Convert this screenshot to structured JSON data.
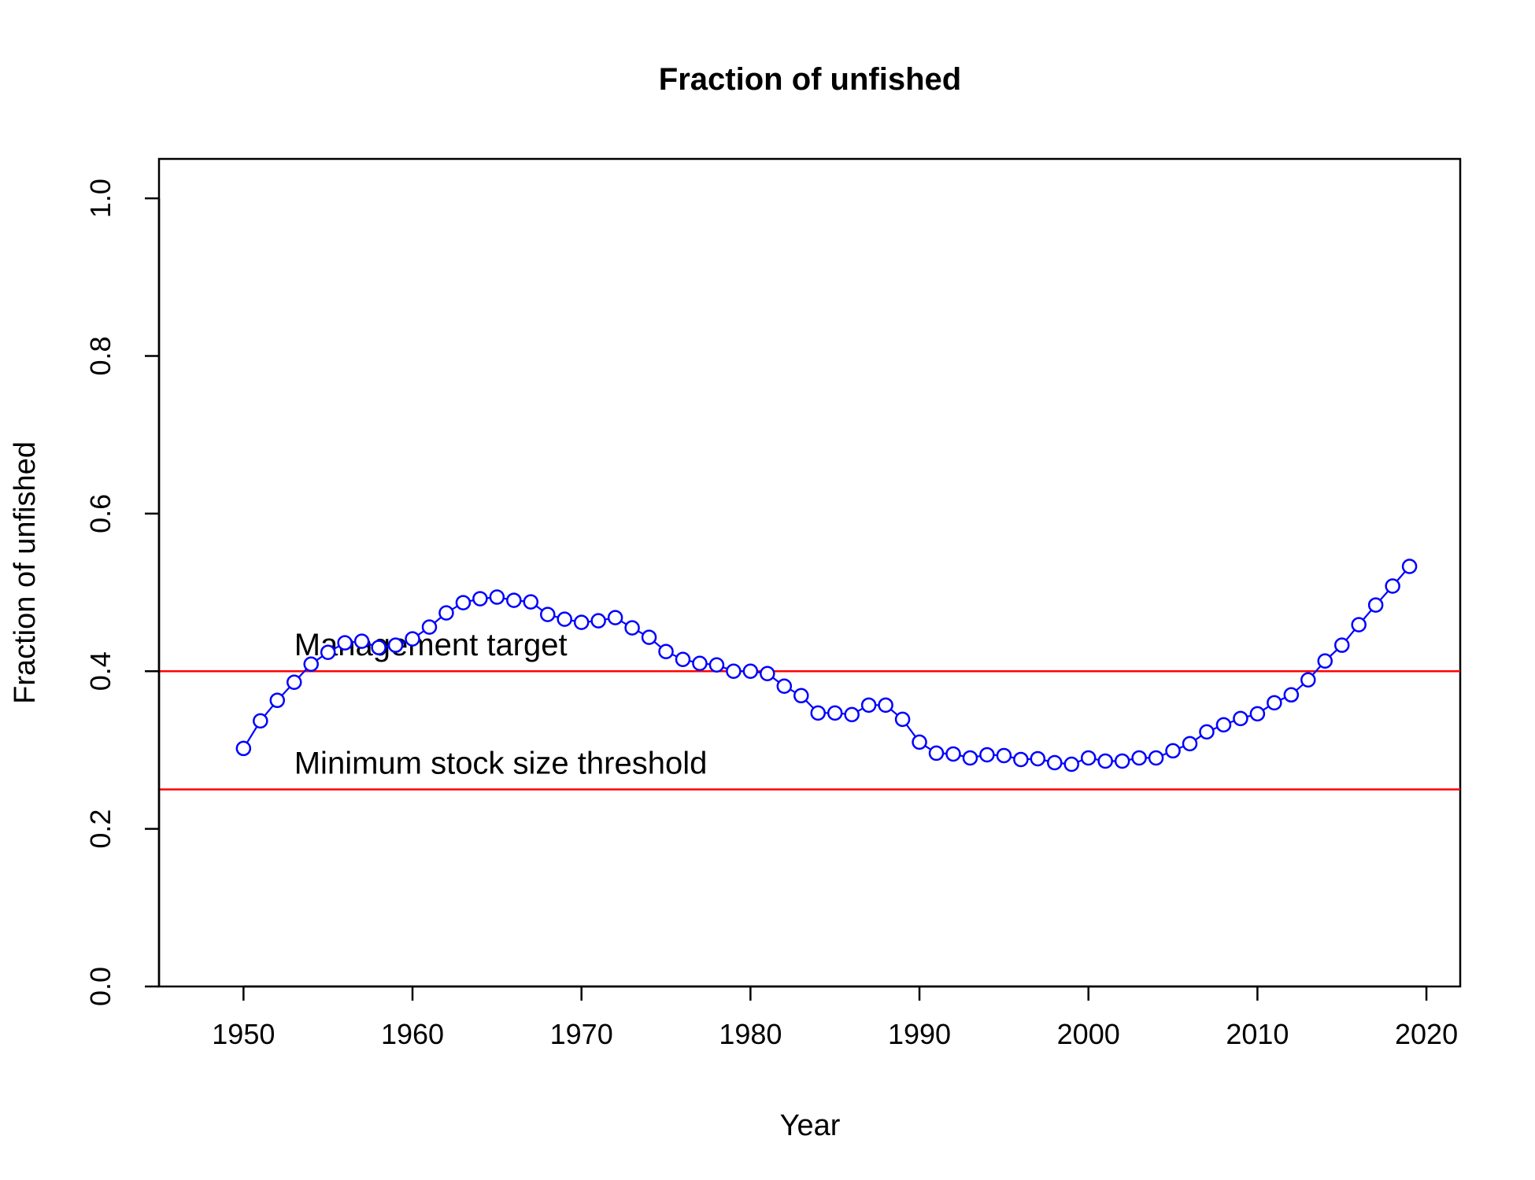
{
  "chart_data": {
    "type": "line",
    "title": "Fraction of unfished",
    "xlabel": "Year",
    "ylabel": "Fraction of unfished",
    "xlim": [
      1945,
      2022
    ],
    "ylim": [
      0.0,
      1.05
    ],
    "x_ticks": [
      1950,
      1960,
      1970,
      1980,
      1990,
      2000,
      2010,
      2020
    ],
    "x_tick_labels": [
      "1950",
      "1960",
      "1970",
      "1980",
      "1990",
      "2000",
      "2010",
      "2020"
    ],
    "y_ticks": [
      0.0,
      0.2,
      0.4,
      0.6,
      0.8,
      1.0
    ],
    "y_tick_labels": [
      "0.0",
      "0.2",
      "0.4",
      "0.6",
      "0.8",
      "1.0"
    ],
    "grid": false,
    "series": [
      {
        "color": "#0000ff",
        "marker": "open-circle",
        "x": [
          1950,
          1951,
          1952,
          1953,
          1954,
          1955,
          1956,
          1957,
          1958,
          1959,
          1960,
          1961,
          1962,
          1963,
          1964,
          1965,
          1966,
          1967,
          1968,
          1969,
          1970,
          1971,
          1972,
          1973,
          1974,
          1975,
          1976,
          1977,
          1978,
          1979,
          1980,
          1981,
          1982,
          1983,
          1984,
          1985,
          1986,
          1987,
          1988,
          1989,
          1990,
          1991,
          1992,
          1993,
          1994,
          1995,
          1996,
          1997,
          1998,
          1999,
          2000,
          2001,
          2002,
          2003,
          2004,
          2005,
          2006,
          2007,
          2008,
          2009,
          2010,
          2011,
          2012,
          2013,
          2014,
          2015,
          2016,
          2017,
          2018,
          2019
        ],
        "y": [
          0.302,
          0.337,
          0.363,
          0.386,
          0.409,
          0.424,
          0.436,
          0.438,
          0.43,
          0.433,
          0.441,
          0.456,
          0.474,
          0.487,
          0.492,
          0.494,
          0.49,
          0.488,
          0.472,
          0.466,
          0.462,
          0.464,
          0.468,
          0.455,
          0.443,
          0.425,
          0.415,
          0.41,
          0.408,
          0.4,
          0.4,
          0.397,
          0.381,
          0.369,
          0.347,
          0.347,
          0.345,
          0.357,
          0.357,
          0.339,
          0.31,
          0.296,
          0.295,
          0.29,
          0.294,
          0.293,
          0.288,
          0.289,
          0.284,
          0.282,
          0.29,
          0.286,
          0.286,
          0.29,
          0.29,
          0.299,
          0.308,
          0.323,
          0.332,
          0.34,
          0.346,
          0.36,
          0.37,
          0.389,
          0.413,
          0.433,
          0.459,
          0.484,
          0.508,
          0.533
        ]
      }
    ],
    "reference_lines": [
      {
        "y": 0.4,
        "color": "#ff0000",
        "label": "Management target",
        "label_x": 1953
      },
      {
        "y": 0.25,
        "color": "#ff0000",
        "label": "Minimum stock size threshold",
        "label_x": 1953
      }
    ]
  }
}
